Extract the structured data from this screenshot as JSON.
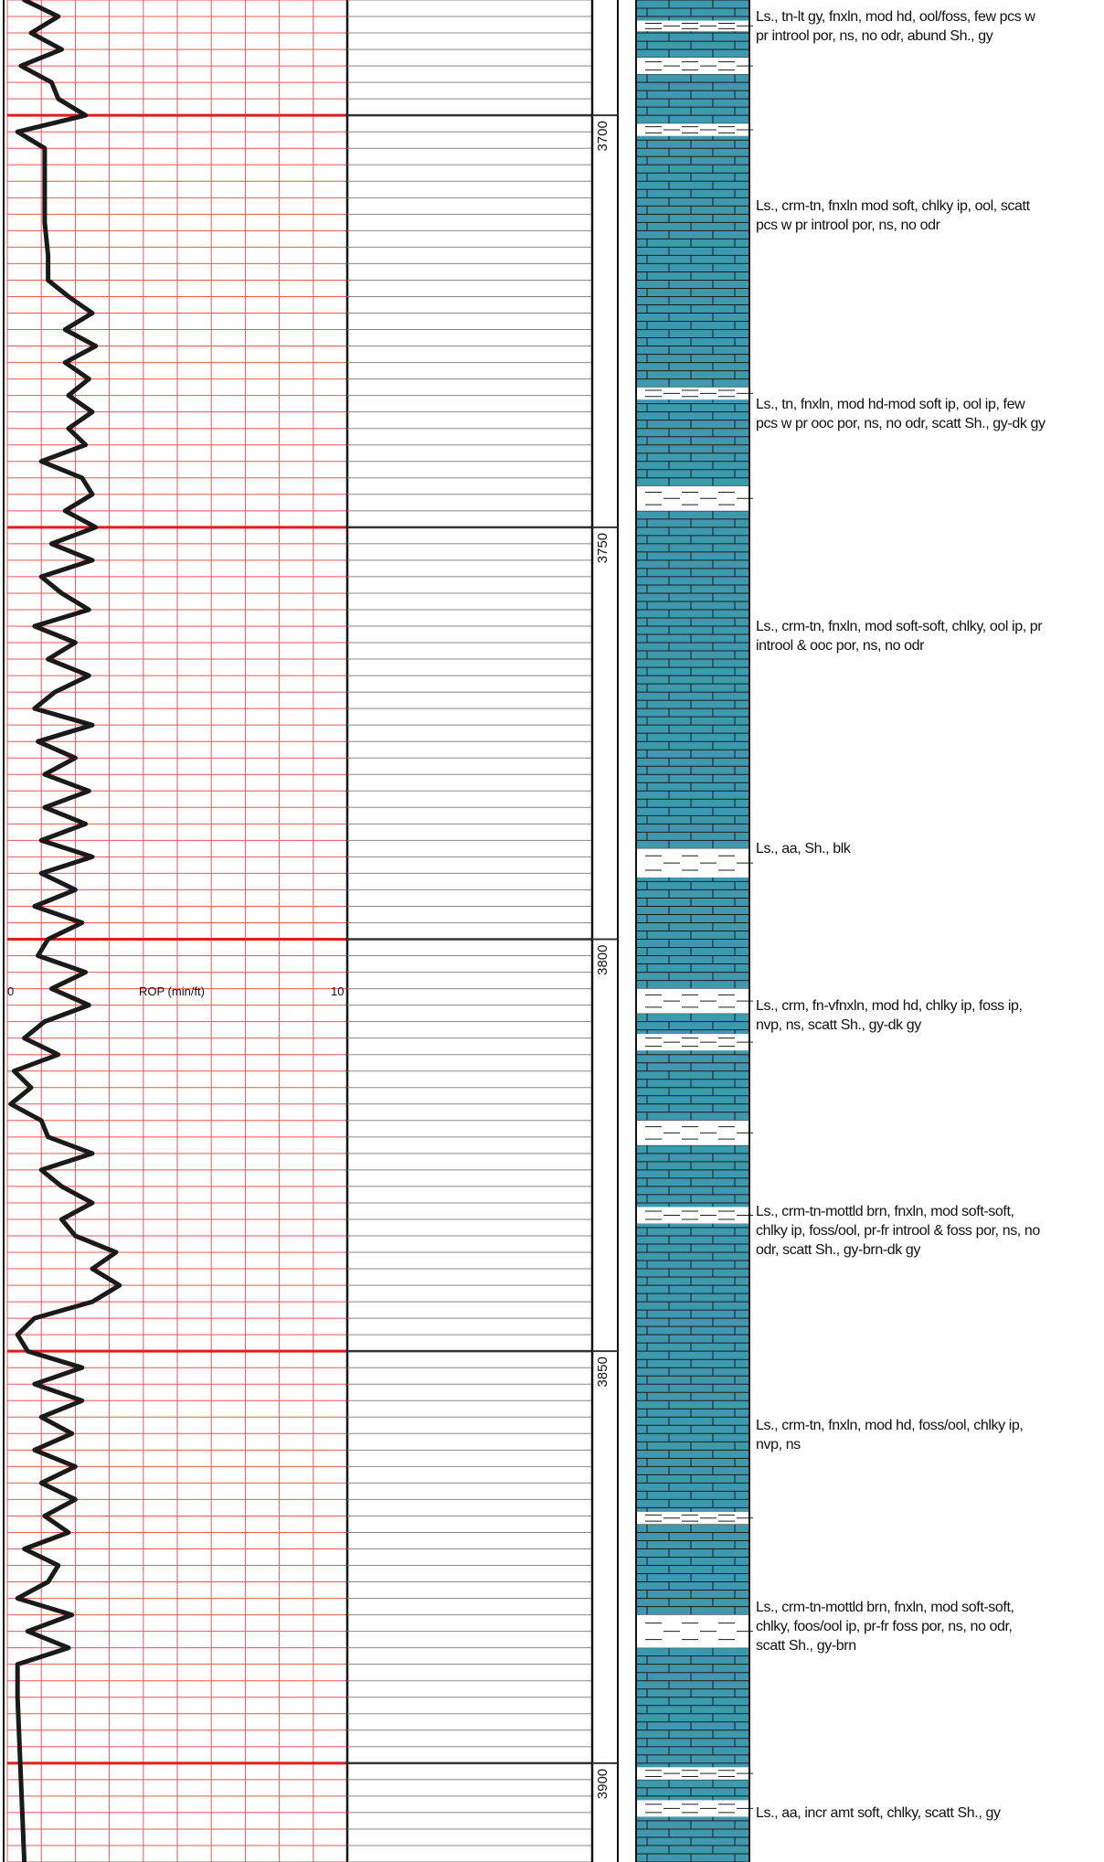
{
  "chart_data": {
    "type": "line",
    "title": "",
    "xlabel": "ROP (min/ft)",
    "ylabel": "",
    "xlim": [
      0,
      10
    ],
    "x_tick_labels": [
      "0",
      "10"
    ],
    "depth_range": [
      3686,
      3912
    ],
    "depth_ticks": [
      "3700",
      "3750",
      "3800",
      "3850",
      "3900"
    ],
    "grid": true,
    "series": [
      {
        "name": "",
        "x": [
          0.5,
          1.5,
          0.7,
          1.6,
          0.4,
          1.3,
          1.5,
          2.3,
          0.3,
          1.1,
          1.1,
          1.1,
          1.2,
          1.2,
          1.8,
          2.5,
          1.7,
          2.6,
          1.7,
          2.4,
          1.8,
          2.5,
          1.8,
          2.3,
          1.0,
          2.2,
          2.5,
          1.7,
          2.6,
          1.3,
          2.5,
          1.0,
          1.6,
          2.4,
          0.8,
          2.0,
          1.2,
          2.4,
          1.4,
          0.8,
          2.5,
          0.9,
          2.0,
          1.1,
          2.4,
          1.1,
          2.3,
          1.0,
          2.5,
          1.0,
          2.0,
          0.8,
          2.2,
          1.2,
          0.9,
          2.3,
          1.3,
          2.4,
          1.1,
          0.5,
          1.5,
          0.2,
          0.7,
          0.1,
          1.0,
          1.2,
          2.5,
          1.0,
          1.6,
          2.5,
          1.6,
          2.0,
          3.2,
          2.5,
          3.3,
          2.5,
          0.8,
          0.3,
          0.6,
          2.2,
          0.8,
          2.2,
          1.0,
          1.9,
          0.8,
          2.0,
          1.0,
          2.0,
          1.1,
          1.8,
          0.5,
          1.5,
          1.2,
          0.3,
          1.9,
          0.6,
          1.8,
          0.3,
          0.3,
          0.5
        ],
        "depth": [
          3686.0,
          3688.0,
          3690.0,
          3692.0,
          3694.0,
          3696.0,
          3698.0,
          3700.0,
          3702.0,
          3704.0,
          3708.0,
          3713.0,
          3717.0,
          3720.0,
          3722.0,
          3724.0,
          3726.0,
          3728.0,
          3730.0,
          3732.0,
          3734.0,
          3736.0,
          3738.0,
          3740.0,
          3742.0,
          3744.0,
          3746.0,
          3748.0,
          3750.0,
          3752.0,
          3754.0,
          3756.0,
          3758.0,
          3760.0,
          3762.0,
          3764.0,
          3766.0,
          3768.0,
          3770.0,
          3772.0,
          3774.0,
          3776.0,
          3778.0,
          3780.0,
          3782.0,
          3784.0,
          3786.0,
          3788.0,
          3790.0,
          3792.0,
          3794.0,
          3796.0,
          3798.0,
          3800.0,
          3802.0,
          3804.0,
          3806.0,
          3808.0,
          3810.0,
          3812.0,
          3814.0,
          3816.0,
          3818.0,
          3820.0,
          3822.0,
          3824.0,
          3826.0,
          3828.0,
          3830.0,
          3832.0,
          3834.0,
          3836.0,
          3838.0,
          3840.0,
          3842.0,
          3844.0,
          3846.0,
          3848.0,
          3850.0,
          3852.0,
          3854.0,
          3856.0,
          3858.0,
          3860.0,
          3862.0,
          3864.0,
          3866.0,
          3868.0,
          3870.0,
          3872.0,
          3874.0,
          3876.0,
          3878.0,
          3880.0,
          3882.0,
          3884.0,
          3886.0,
          3888.0,
          3892.0,
          3912.0
        ]
      }
    ],
    "lithology": {
      "limestone_color": "#3e98ae",
      "shale_color": "#ffffff",
      "shale_beds": [
        {
          "top": 3688.5,
          "base": 3689.8
        },
        {
          "top": 3693.0,
          "base": 3695.0
        },
        {
          "top": 3701.0,
          "base": 3702.5
        },
        {
          "top": 3733.0,
          "base": 3734.5
        },
        {
          "top": 3745.0,
          "base": 3748.0
        },
        {
          "top": 3789.0,
          "base": 3792.5
        },
        {
          "top": 3806.0,
          "base": 3809.0
        },
        {
          "top": 3811.5,
          "base": 3813.5
        },
        {
          "top": 3822.0,
          "base": 3825.0
        },
        {
          "top": 3832.5,
          "base": 3834.5
        },
        {
          "top": 3869.5,
          "base": 3871.0
        },
        {
          "top": 3882.0,
          "base": 3886.0
        },
        {
          "top": 3900.5,
          "base": 3902.0
        },
        {
          "top": 3904.5,
          "base": 3906.5
        }
      ]
    },
    "annotations": [
      {
        "depth": 3688,
        "lines": [
          "Ls., tn-lt gy, fnxln, mod hd, ool/foss, few pcs w",
          "pr introol por, ns, no odr, abund Sh., gy"
        ]
      },
      {
        "depth": 3711,
        "lines": [
          "Ls., crm-tn, fnxln mod soft, chlky ip, ool, scatt",
          "pcs w pr introol por, ns, no odr"
        ]
      },
      {
        "depth": 3735,
        "lines": [
          "Ls., tn, fnxln, mod hd-mod soft ip, ool ip, few",
          "pcs w pr ooc por, ns, no odr, scatt Sh., gy-dk gy"
        ]
      },
      {
        "depth": 3762,
        "lines": [
          "Ls., crm-tn, fnxln, mod soft-soft, chlky, ool ip, pr",
          "introol & ooc por, ns, no odr"
        ]
      },
      {
        "depth": 3789,
        "lines": [
          "Ls., aa, Sh., blk"
        ]
      },
      {
        "depth": 3808,
        "lines": [
          "Ls., crm, fn-vfnxln, mod hd, chlky ip, foss ip,",
          "nvp, ns, scatt Sh., gy-dk gy"
        ]
      },
      {
        "depth": 3833,
        "lines": [
          "Ls., crm-tn-mottld brn, fnxln, mod soft-soft,",
          "chlky ip, foss/ool, pr-fr introol & foss por, ns, no",
          "odr, scatt Sh., gy-brn-dk gy"
        ]
      },
      {
        "depth": 3859,
        "lines": [
          "Ls., crm-tn, fnxln, mod hd, foss/ool, chlky ip,",
          "nvp, ns"
        ]
      },
      {
        "depth": 3881,
        "lines": [
          "Ls., crm-tn-mottld brn, fnxln, mod soft-soft,",
          "chlky, foos/ool ip, pr-fr foss por, ns, no odr,",
          "scatt Sh., gy-brn"
        ]
      },
      {
        "depth": 3906,
        "lines": [
          "Ls., aa, incr amt soft, chlky, scatt Sh., gy"
        ]
      }
    ]
  }
}
